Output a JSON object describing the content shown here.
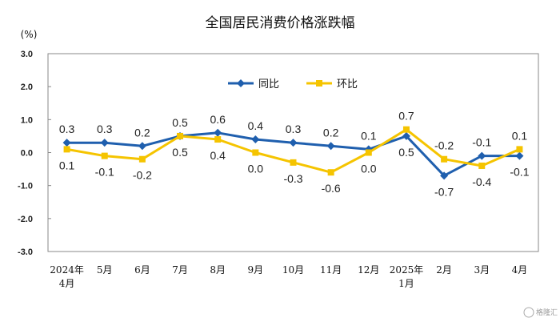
{
  "chart_data": {
    "type": "line",
    "title": "全国居民消费价格涨跌幅",
    "unit_label": "(%)",
    "ylim": [
      -3.0,
      3.0
    ],
    "yticks": [
      "3.0",
      "2.0",
      "1.0",
      "0.0",
      "-1.0",
      "-2.0",
      "-3.0"
    ],
    "categories": [
      [
        "2024年",
        "4月"
      ],
      [
        "5月"
      ],
      [
        "6月"
      ],
      [
        "7月"
      ],
      [
        "8月"
      ],
      [
        "9月"
      ],
      [
        "10月"
      ],
      [
        "11月"
      ],
      [
        "12月"
      ],
      [
        "2025年",
        "1月"
      ],
      [
        "2月"
      ],
      [
        "3月"
      ],
      [
        "4月"
      ]
    ],
    "series": [
      {
        "name": "同比",
        "color": "#1f5fae",
        "values": [
          0.3,
          0.3,
          0.2,
          0.5,
          0.6,
          0.4,
          0.3,
          0.2,
          0.1,
          0.5,
          -0.7,
          -0.1,
          -0.1
        ]
      },
      {
        "name": "环比",
        "color": "#f5c400",
        "values": [
          0.1,
          -0.1,
          -0.2,
          0.5,
          0.4,
          0.0,
          -0.3,
          -0.6,
          0.0,
          0.7,
          -0.2,
          -0.4,
          0.1
        ]
      }
    ],
    "grid": false,
    "legend_position": "top-center"
  },
  "watermark": "格隆汇"
}
